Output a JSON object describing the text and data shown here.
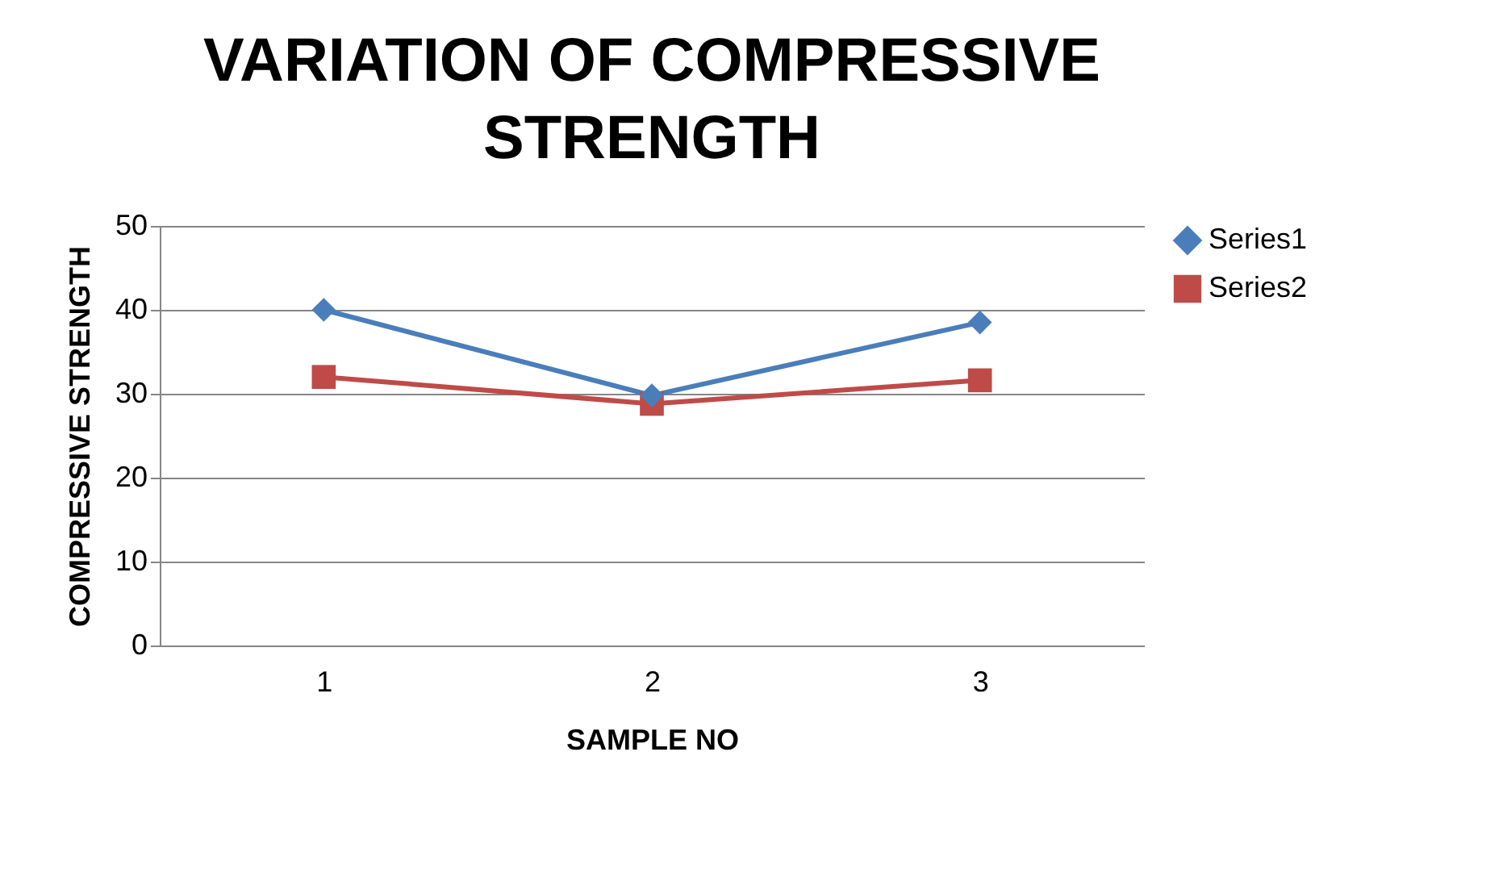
{
  "chart_data": {
    "type": "line",
    "title": "VARIATION OF COMPRESSIVE STRENGTH",
    "xlabel": "SAMPLE NO",
    "ylabel": "COMPRESSIVE STRENGTH",
    "categories": [
      "1",
      "2",
      "3"
    ],
    "series": [
      {
        "name": "Series1",
        "color": "#4a7ebb",
        "marker": "diamond",
        "values": [
          40,
          29.8,
          38.5
        ]
      },
      {
        "name": "Series2",
        "color": "#be4b48",
        "marker": "square",
        "values": [
          32,
          28.8,
          31.6
        ]
      }
    ],
    "ylim": [
      0,
      50
    ],
    "yticks": [
      0,
      10,
      20,
      30,
      40,
      50
    ],
    "grid": "y",
    "legend": "right",
    "line_style": "solid"
  }
}
